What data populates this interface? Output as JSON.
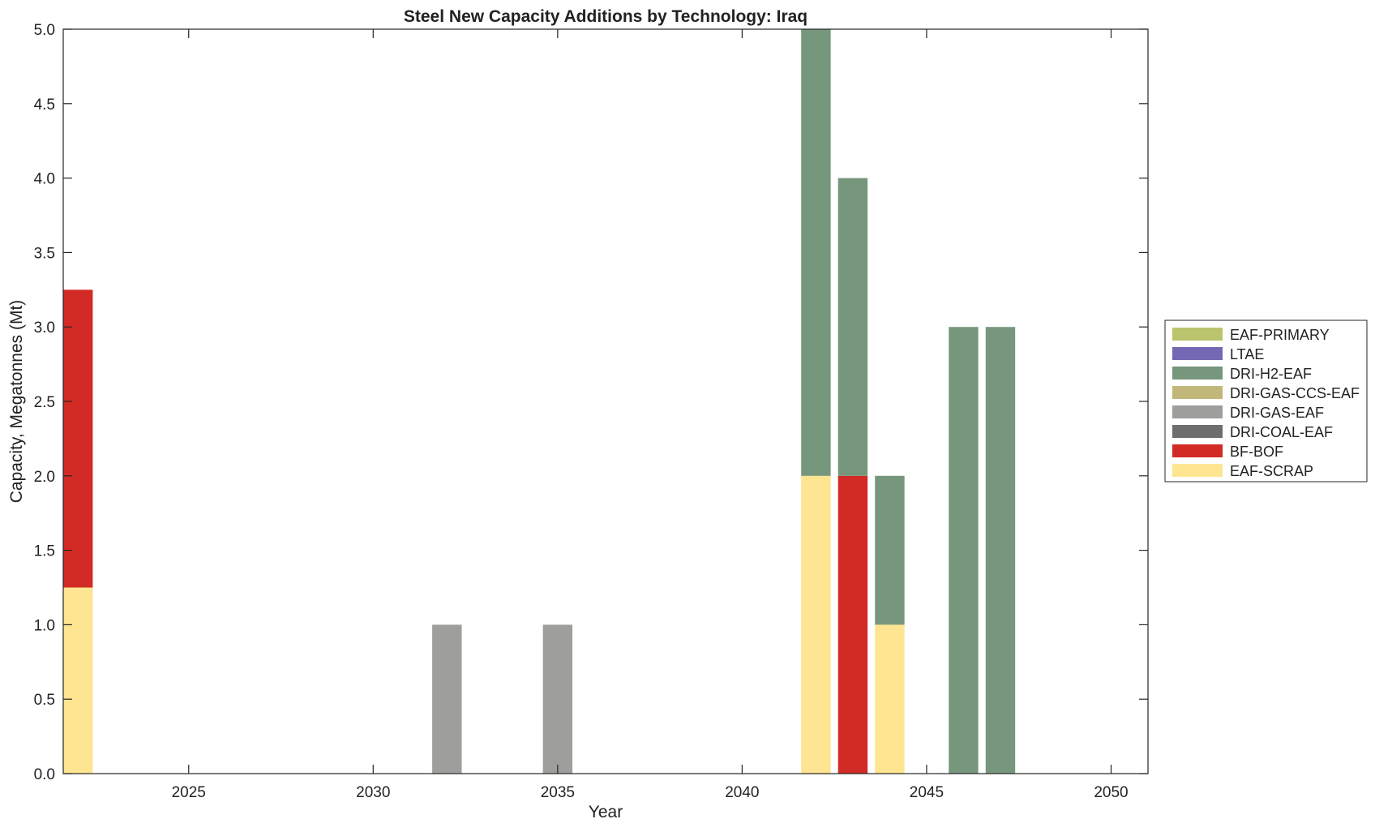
{
  "chart_data": {
    "type": "bar",
    "stacked": true,
    "title": "Steel New Capacity Additions by Technology: Iraq",
    "xlabel": "Year",
    "ylabel": "Capacity, Megatonnes (Mt)",
    "xlim": [
      2021.6,
      2051
    ],
    "ylim": [
      0,
      5
    ],
    "xticks": [
      2025,
      2030,
      2035,
      2040,
      2045,
      2050
    ],
    "yticks": [
      0.0,
      0.5,
      1.0,
      1.5,
      2.0,
      2.5,
      3.0,
      3.5,
      4.0,
      4.5,
      5.0
    ],
    "ytick_labels": [
      "0.0",
      "0.5",
      "1.0",
      "1.5",
      "2.0",
      "2.5",
      "3.0",
      "3.5",
      "4.0",
      "4.5",
      "5.0"
    ],
    "legend_position": "right",
    "grid": false,
    "series": [
      {
        "name": "EAF-SCRAP",
        "color": "#fee591",
        "points": [
          {
            "year": 2022,
            "value": 1.25
          },
          {
            "year": 2042,
            "value": 2.0
          },
          {
            "year": 2044,
            "value": 1.0
          }
        ]
      },
      {
        "name": "BF-BOF",
        "color": "#d22a24",
        "points": [
          {
            "year": 2022,
            "value": 2.0
          },
          {
            "year": 2043,
            "value": 2.0
          }
        ]
      },
      {
        "name": "DRI-COAL-EAF",
        "color": "#6e6e6e",
        "points": []
      },
      {
        "name": "DRI-GAS-EAF",
        "color": "#9e9e9c",
        "points": [
          {
            "year": 2032,
            "value": 1.0
          },
          {
            "year": 2035,
            "value": 1.0
          }
        ]
      },
      {
        "name": "DRI-GAS-CCS-EAF",
        "color": "#c2b77b",
        "points": []
      },
      {
        "name": "DRI-H2-EAF",
        "color": "#76977c",
        "points": [
          {
            "year": 2042,
            "value": 3.0
          },
          {
            "year": 2043,
            "value": 2.0
          },
          {
            "year": 2044,
            "value": 1.0
          },
          {
            "year": 2046,
            "value": 3.0
          },
          {
            "year": 2047,
            "value": 3.0
          }
        ]
      },
      {
        "name": "LTAE",
        "color": "#7468b4",
        "points": []
      },
      {
        "name": "EAF-PRIMARY",
        "color": "#b9c46c",
        "points": []
      }
    ],
    "legend_order": [
      "EAF-PRIMARY",
      "LTAE",
      "DRI-H2-EAF",
      "DRI-GAS-CCS-EAF",
      "DRI-GAS-EAF",
      "DRI-COAL-EAF",
      "BF-BOF",
      "EAF-SCRAP"
    ]
  }
}
